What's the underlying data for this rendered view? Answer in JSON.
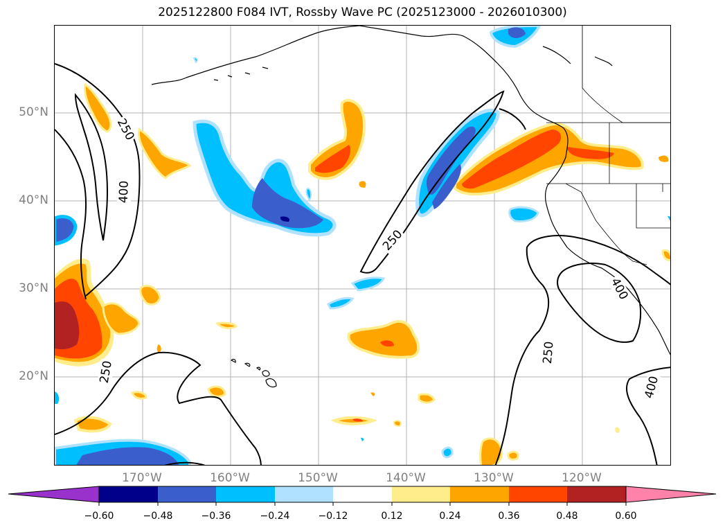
{
  "title": "2025122800 F084 IVT, Rossby Wave PC (2025123000 - 2026010300)",
  "lat_labels": [
    "50°N",
    "40°N",
    "30°N",
    "20°N"
  ],
  "lon_labels": [
    "170°W",
    "160°W",
    "150°W",
    "140°W",
    "130°W",
    "120°W"
  ],
  "contour_labels": [
    "250",
    "400",
    "250",
    "400",
    "250",
    "250",
    "400"
  ],
  "colorbar": {
    "ticks": [
      "−0.60",
      "−0.48",
      "−0.36",
      "−0.24",
      "−0.12",
      "0.12",
      "0.24",
      "0.36",
      "0.48",
      "0.60"
    ],
    "colors": [
      "#9932cc",
      "#00008b",
      "#3a5fcd",
      "#00bfff",
      "#b0e2ff",
      "#ffffff",
      "#ffec8b",
      "#ffa500",
      "#ff4500",
      "#b22222",
      "#ff82ab"
    ]
  },
  "palette": {
    "dark_blue": "#00008b",
    "royal_blue": "#3a5fcd",
    "deep_sky": "#00bfff",
    "light_sky": "#b0e2ff",
    "light_yellow": "#ffec8b",
    "orange": "#ffa500",
    "orange_red": "#ff4500",
    "firebrick": "#b22222"
  }
}
